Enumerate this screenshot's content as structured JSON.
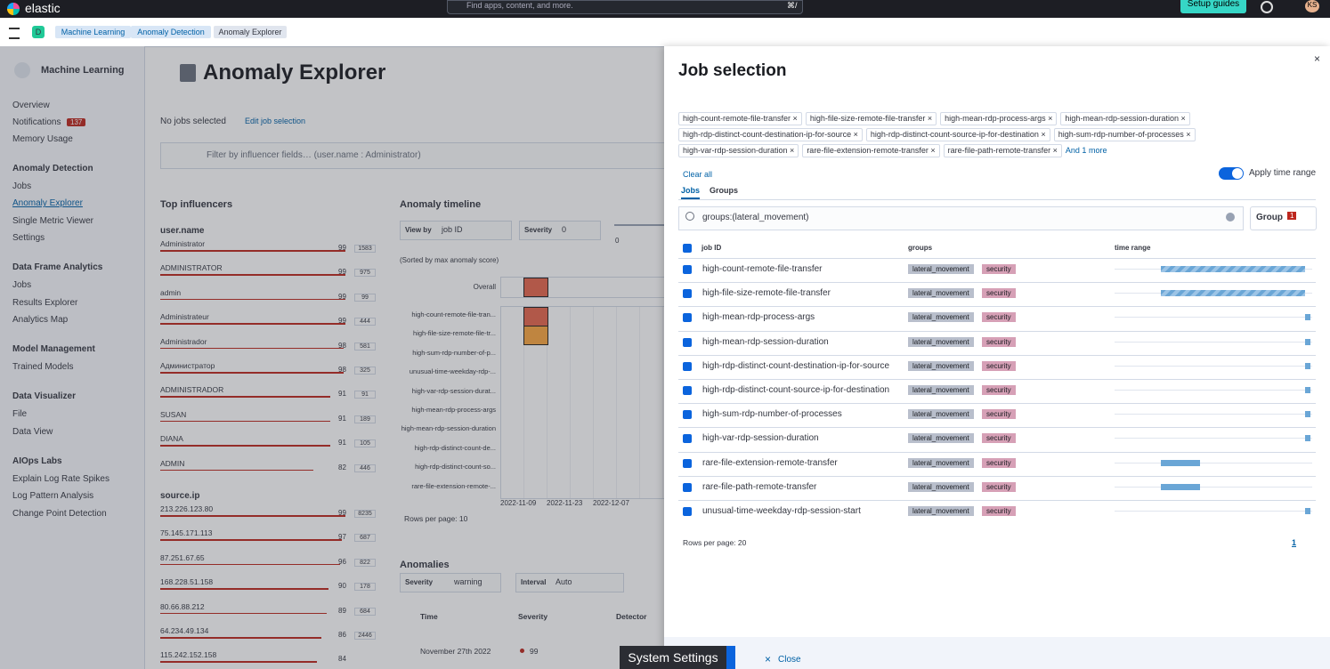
{
  "header": {
    "logo": "elastic",
    "search": "Find apps, content, and more.",
    "shortcut": "⌘/",
    "setup": "Setup guides",
    "avatar": "KS",
    "space": "D",
    "breadcrumbs": [
      "Machine Learning",
      "Anomaly Detection",
      "Anomaly Explorer"
    ]
  },
  "sidebar": {
    "title": "Machine Learning",
    "items": [
      "Overview",
      "Notifications",
      "Memory Usage"
    ],
    "badge": "137",
    "active": "Anomaly Explorer",
    "groups": [
      {
        "title": "Anomaly Detection",
        "items": [
          "Jobs",
          "Anomaly Explorer",
          "Single Metric Viewer",
          "Settings"
        ]
      },
      {
        "title": "Data Frame Analytics",
        "items": [
          "Jobs",
          "Results Explorer",
          "Analytics Map"
        ]
      },
      {
        "title": "Model Management",
        "items": [
          "Trained Models"
        ]
      },
      {
        "title": "Data Visualizer",
        "items": [
          "File",
          "Data View"
        ]
      },
      {
        "title": "AIOps Labs",
        "items": [
          "Explain Log Rate Spikes",
          "Log Pattern Analysis",
          "Change Point Detection"
        ]
      }
    ]
  },
  "main": {
    "title": "Anomaly Explorer",
    "no_jobs": "No jobs selected",
    "edit_jobs": "Edit job selection",
    "filter": "Filter by influencer fields… (user.name : Administrator)",
    "influencers": {
      "title": "Top influencers",
      "fields": [
        {
          "name": "user.name",
          "items": [
            {
              "label": "Administrator",
              "score": 99,
              "count": 1583
            },
            {
              "label": "ADMINISTRATOR",
              "score": 99,
              "count": 975
            },
            {
              "label": "admin",
              "score": 99,
              "count": 99
            },
            {
              "label": "Administrateur",
              "score": 99,
              "count": 444
            },
            {
              "label": "Administrador",
              "score": 98,
              "count": 581
            },
            {
              "label": "Администратор",
              "score": 98,
              "count": 325
            },
            {
              "label": "ADMINISTRADOR",
              "score": 91,
              "count": 91
            },
            {
              "label": "SUSAN",
              "score": 91,
              "count": 189
            },
            {
              "label": "DIANA",
              "score": 91,
              "count": 105
            },
            {
              "label": "ADMIN",
              "score": 82,
              "count": 446
            }
          ]
        },
        {
          "name": "source.ip",
          "items": [
            {
              "label": "213.226.123.80",
              "score": 99,
              "count": 8235
            },
            {
              "label": "75.145.171.113",
              "score": 97,
              "count": 687
            },
            {
              "label": "87.251.67.65",
              "score": 96,
              "count": 822
            },
            {
              "label": "168.228.51.158",
              "score": 90,
              "count": 178
            },
            {
              "label": "80.66.88.212",
              "score": 89,
              "count": 684
            },
            {
              "label": "64.234.49.134",
              "score": 86,
              "count": 2446
            },
            {
              "label": "115.242.152.158",
              "score": 84
            }
          ]
        }
      ]
    },
    "timeline": {
      "title": "Anomaly timeline",
      "view_by": "View by",
      "view_by_value": "job ID",
      "severity": "Severity",
      "severity_value": "0",
      "slider_min": "0",
      "sorted": "(Sorted by max anomaly score)",
      "overall": "Overall",
      "rows": [
        "high-count-remote-file-tran...",
        "high-file-size-remote-file-tr...",
        "high-sum-rdp-number-of-p...",
        "unusual-time-weekday-rdp-...",
        "high-var-rdp-session-durat...",
        "high-mean-rdp-process-args",
        "high-mean-rdp-session-duration",
        "high-rdp-distinct-count-de...",
        "high-rdp-distinct-count-so...",
        "rare-file-extension-remote-..."
      ],
      "dates": [
        "2022-11-09",
        "2022-11-23",
        "2022-12-07"
      ],
      "rows_per_page": "Rows per page: 10"
    },
    "anomalies": {
      "title": "Anomalies",
      "severity": "Severity",
      "severity_value": "warning",
      "interval": "Interval",
      "interval_value": "Auto",
      "columns": [
        "Time",
        "Severity",
        "Detector"
      ],
      "row_time": "November 27th 2022",
      "row_score": "99"
    }
  },
  "flyout": {
    "title": "Job selection",
    "tags": [
      "high-count-remote-file-transfer",
      "high-file-size-remote-file-transfer",
      "high-mean-rdp-process-args",
      "high-mean-rdp-session-duration",
      "high-rdp-distinct-count-destination-ip-for-source",
      "high-rdp-distinct-count-source-ip-for-destination",
      "high-sum-rdp-number-of-processes",
      "high-var-rdp-session-duration",
      "rare-file-extension-remote-transfer",
      "rare-file-path-remote-transfer"
    ],
    "more": "And 1 more",
    "clear": "Clear all",
    "apply_time": "Apply time range",
    "tabs": [
      "Jobs",
      "Groups"
    ],
    "search": "groups:(lateral_movement)",
    "group_button": "Group",
    "group_count": "1",
    "columns": [
      "job ID",
      "groups",
      "time range"
    ],
    "rows": [
      {
        "job": "high-count-remote-file-transfer",
        "groups": [
          "lateral_movement",
          "security"
        ]
      },
      {
        "job": "high-file-size-remote-file-transfer",
        "groups": [
          "lateral_movement",
          "security"
        ]
      },
      {
        "job": "high-mean-rdp-process-args",
        "groups": [
          "lateral_movement",
          "security"
        ]
      },
      {
        "job": "high-mean-rdp-session-duration",
        "groups": [
          "lateral_movement",
          "security"
        ]
      },
      {
        "job": "high-rdp-distinct-count-destination-ip-for-source",
        "groups": [
          "lateral_movement",
          "security"
        ]
      },
      {
        "job": "high-rdp-distinct-count-source-ip-for-destination",
        "groups": [
          "lateral_movement",
          "security"
        ]
      },
      {
        "job": "high-sum-rdp-number-of-processes",
        "groups": [
          "lateral_movement",
          "security"
        ]
      },
      {
        "job": "high-var-rdp-session-duration",
        "groups": [
          "lateral_movement",
          "security"
        ]
      },
      {
        "job": "rare-file-extension-remote-transfer",
        "groups": [
          "lateral_movement",
          "security"
        ]
      },
      {
        "job": "rare-file-path-remote-transfer",
        "groups": [
          "lateral_movement",
          "security"
        ]
      },
      {
        "job": "unusual-time-weekday-rdp-session-start",
        "groups": [
          "lateral_movement",
          "security"
        ]
      }
    ],
    "rows_per_page": "Rows per page: 20",
    "page": "1",
    "close": "Close",
    "system_settings": "System Settings"
  }
}
